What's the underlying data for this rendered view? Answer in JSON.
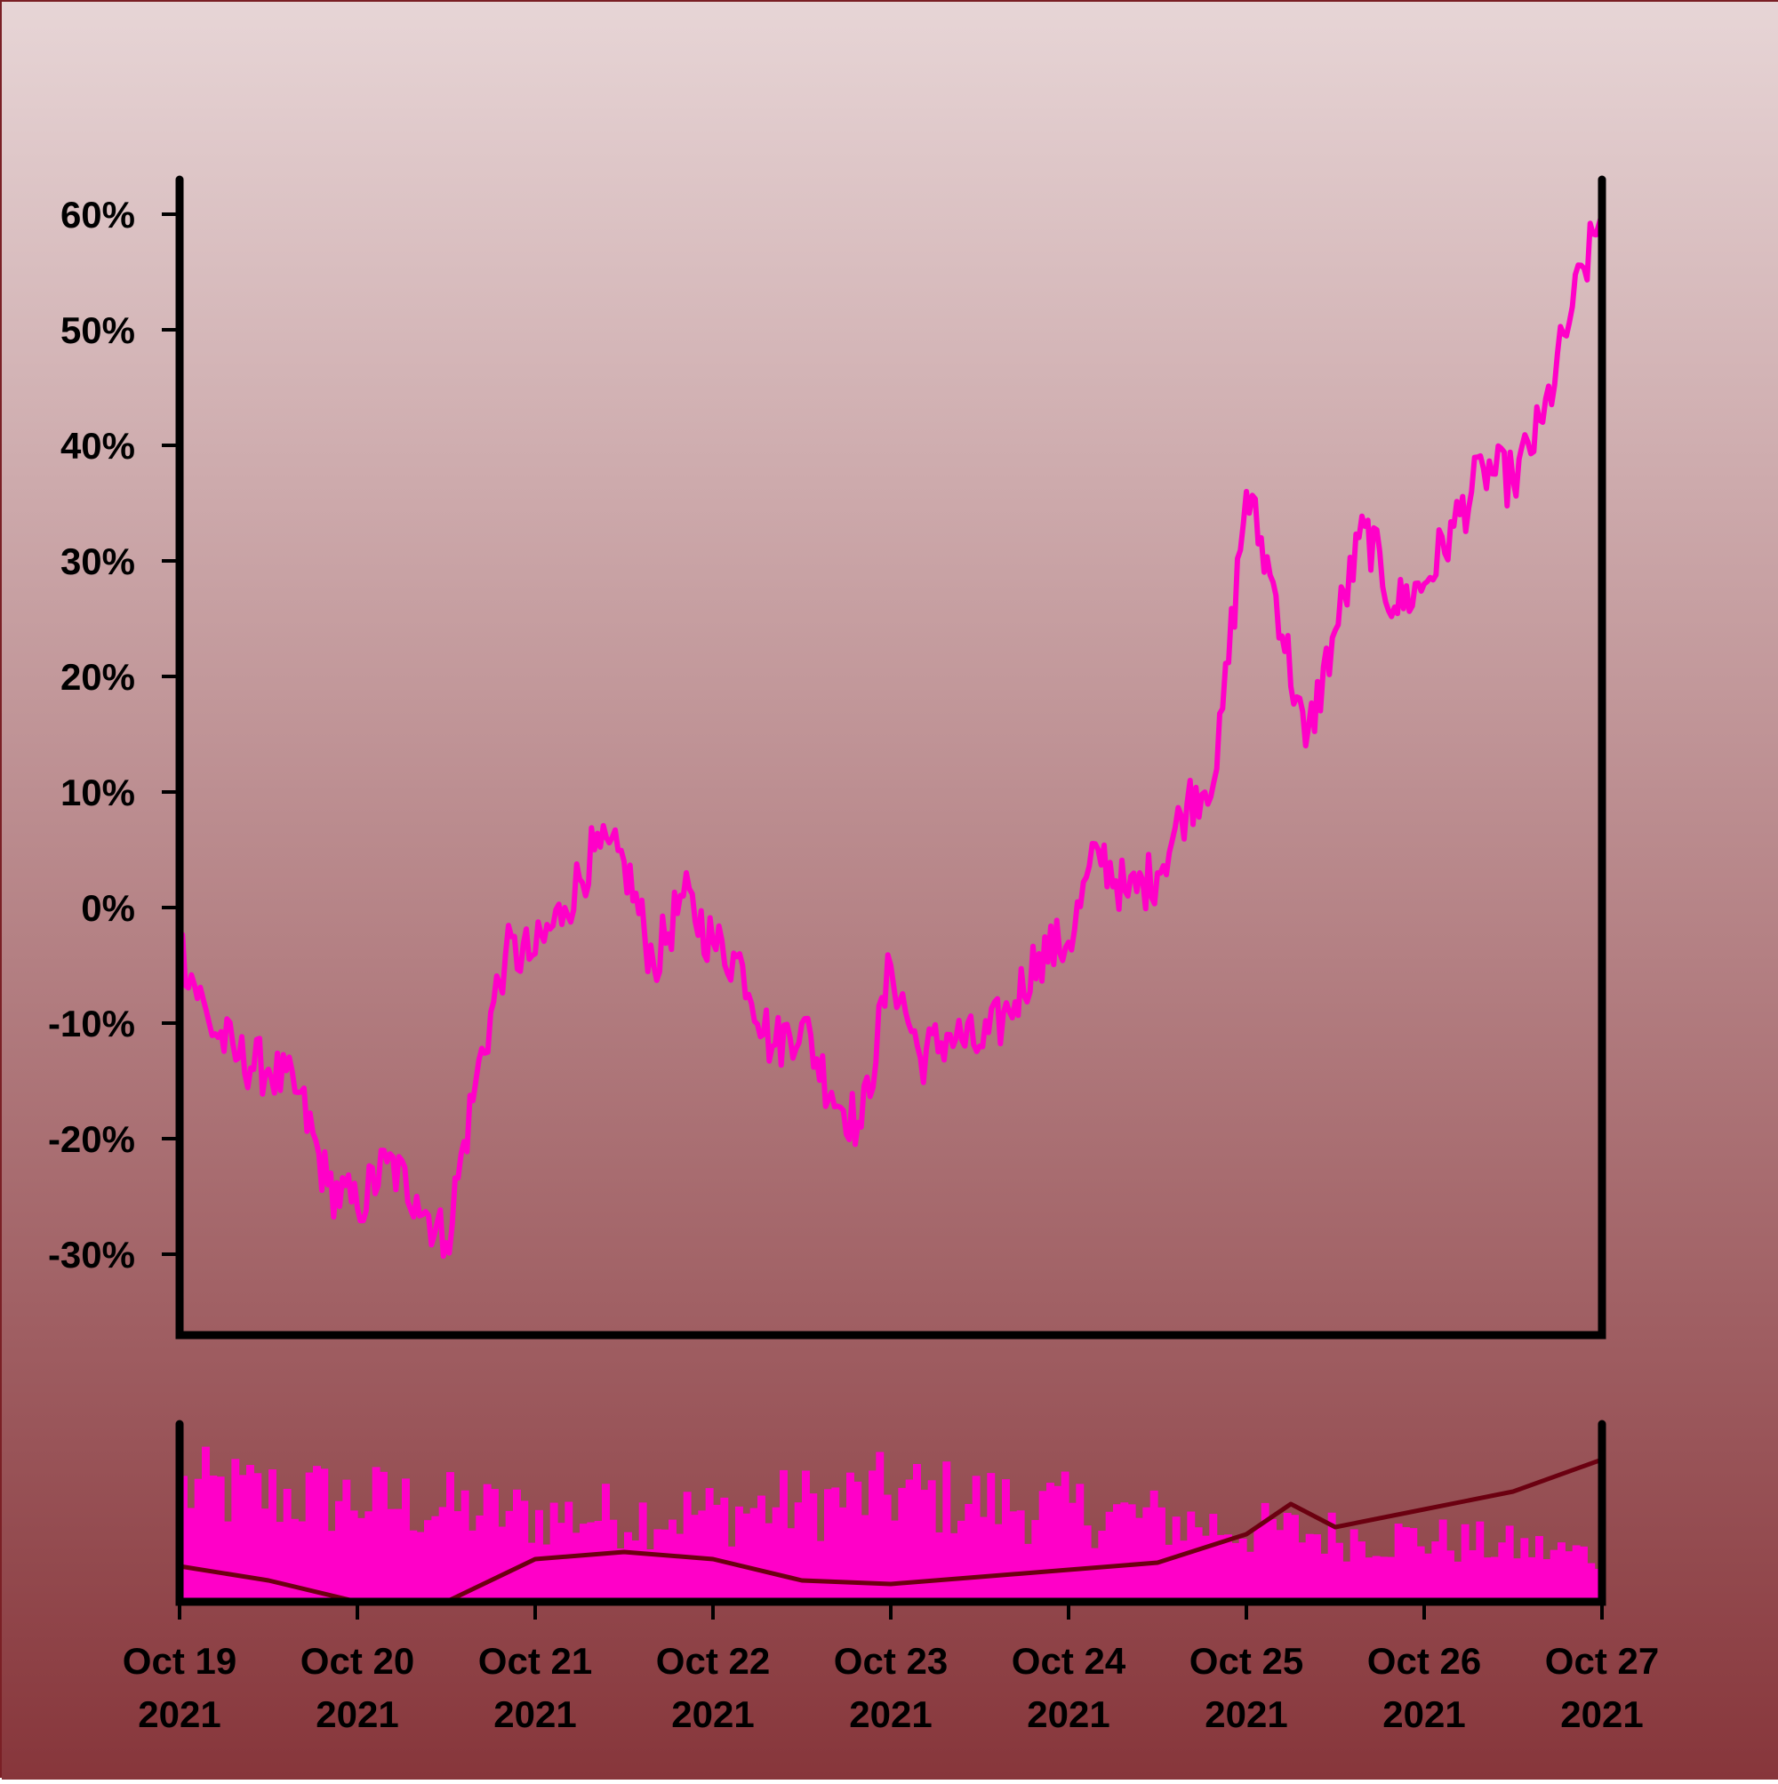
{
  "chart_data": {
    "type": "line",
    "title": "",
    "xlabel": "",
    "ylabel": "",
    "y_unit": "%",
    "ylim": [
      -37,
      63
    ],
    "y_ticks": [
      60,
      50,
      40,
      30,
      20,
      10,
      0,
      -10,
      -20,
      -30
    ],
    "y_tick_labels": [
      "60%",
      "50%",
      "40%",
      "30%",
      "20%",
      "10%",
      "0%",
      "-10%",
      "-20%",
      "-30%"
    ],
    "x_range": [
      "2021-10-19",
      "2021-10-27"
    ],
    "x_ticks": [
      "2021-10-19",
      "2021-10-20",
      "2021-10-21",
      "2021-10-22",
      "2021-10-23",
      "2021-10-24",
      "2021-10-25",
      "2021-10-26",
      "2021-10-27"
    ],
    "x_tick_labels": [
      {
        "line1": "Oct 19",
        "line2": "2021"
      },
      {
        "line1": "Oct 20",
        "line2": "2021"
      },
      {
        "line1": "Oct 21",
        "line2": "2021"
      },
      {
        "line1": "Oct 22",
        "line2": "2021"
      },
      {
        "line1": "Oct 23",
        "line2": "2021"
      },
      {
        "line1": "Oct 24",
        "line2": "2021"
      },
      {
        "line1": "Oct 25",
        "line2": "2021"
      },
      {
        "line1": "Oct 26",
        "line2": "2021"
      },
      {
        "line1": "Oct 27",
        "line2": "2021"
      }
    ],
    "grid": false,
    "legend": "none",
    "series": [
      {
        "values_x": [
          "2021-10-19 00:00",
          "2021-10-19 04:00",
          "2021-10-19 08:00",
          "2021-10-19 12:00",
          "2021-10-19 16:00",
          "2021-10-19 20:00",
          "2021-10-20 00:00",
          "2021-10-20 04:00",
          "2021-10-20 08:00",
          "2021-10-20 12:00",
          "2021-10-20 16:00",
          "2021-10-20 20:00",
          "2021-10-21 00:00",
          "2021-10-21 04:00",
          "2021-10-21 08:00",
          "2021-10-21 12:00",
          "2021-10-21 16:00",
          "2021-10-21 20:00",
          "2021-10-22 00:00",
          "2021-10-22 04:00",
          "2021-10-22 08:00",
          "2021-10-22 12:00",
          "2021-10-22 16:00",
          "2021-10-22 20:00",
          "2021-10-23 00:00",
          "2021-10-23 04:00",
          "2021-10-23 08:00",
          "2021-10-23 12:00",
          "2021-10-23 16:00",
          "2021-10-23 20:00",
          "2021-10-24 00:00",
          "2021-10-24 04:00",
          "2021-10-24 08:00",
          "2021-10-24 12:00",
          "2021-10-24 16:00",
          "2021-10-24 20:00",
          "2021-10-25 00:00",
          "2021-10-25 04:00",
          "2021-10-25 08:00",
          "2021-10-25 12:00",
          "2021-10-25 16:00",
          "2021-10-25 20:00",
          "2021-10-26 00:00",
          "2021-10-26 04:00",
          "2021-10-26 08:00",
          "2021-10-26 12:00",
          "2021-10-26 16:00",
          "2021-10-26 20:00",
          "2021-10-27 00:00"
        ],
        "values": [
          -3,
          -10,
          -13,
          -14,
          -16,
          -24,
          -26,
          -22,
          -25,
          -29,
          -15,
          -4,
          -4,
          0,
          5,
          4,
          -5,
          1,
          -3,
          -5,
          -12,
          -10,
          -16,
          -19,
          -5,
          -13,
          -11,
          -12,
          -9,
          -4,
          -3,
          5,
          1,
          3,
          9,
          12,
          36,
          27,
          14,
          24,
          33,
          26,
          28,
          33,
          38,
          37,
          42,
          52,
          60
        ]
      }
    ],
    "colors": {
      "line": "#ff00c8",
      "volume": "#ff00c8",
      "moving_average": "#6b0010",
      "axes": "#000000",
      "background_top": "#e7d5d6",
      "background_bottom": "#87363b"
    },
    "volume_panel": {
      "type": "bar",
      "bars_per_day": 24,
      "relative_level_by_day": [
        0.68,
        0.62,
        0.52,
        0.54,
        0.66,
        0.56,
        0.44,
        0.38,
        0.28
      ],
      "moving_average": {
        "x": [
          "2021-10-19 00:00",
          "2021-10-19 12:00",
          "2021-10-20 00:00",
          "2021-10-20 12:00",
          "2021-10-21 00:00",
          "2021-10-21 12:00",
          "2021-10-22 00:00",
          "2021-10-22 12:00",
          "2021-10-23 00:00",
          "2021-10-23 12:00",
          "2021-10-24 00:00",
          "2021-10-24 12:00",
          "2021-10-25 00:00",
          "2021-10-25 06:00",
          "2021-10-25 12:00",
          "2021-10-26 00:00",
          "2021-10-26 12:00",
          "2021-10-27 00:00"
        ],
        "relative_level": [
          0.2,
          0.12,
          0.0,
          0.0,
          0.24,
          0.28,
          0.24,
          0.12,
          0.1,
          0.14,
          0.18,
          0.22,
          0.38,
          0.55,
          0.42,
          0.52,
          0.62,
          0.8
        ]
      }
    }
  }
}
